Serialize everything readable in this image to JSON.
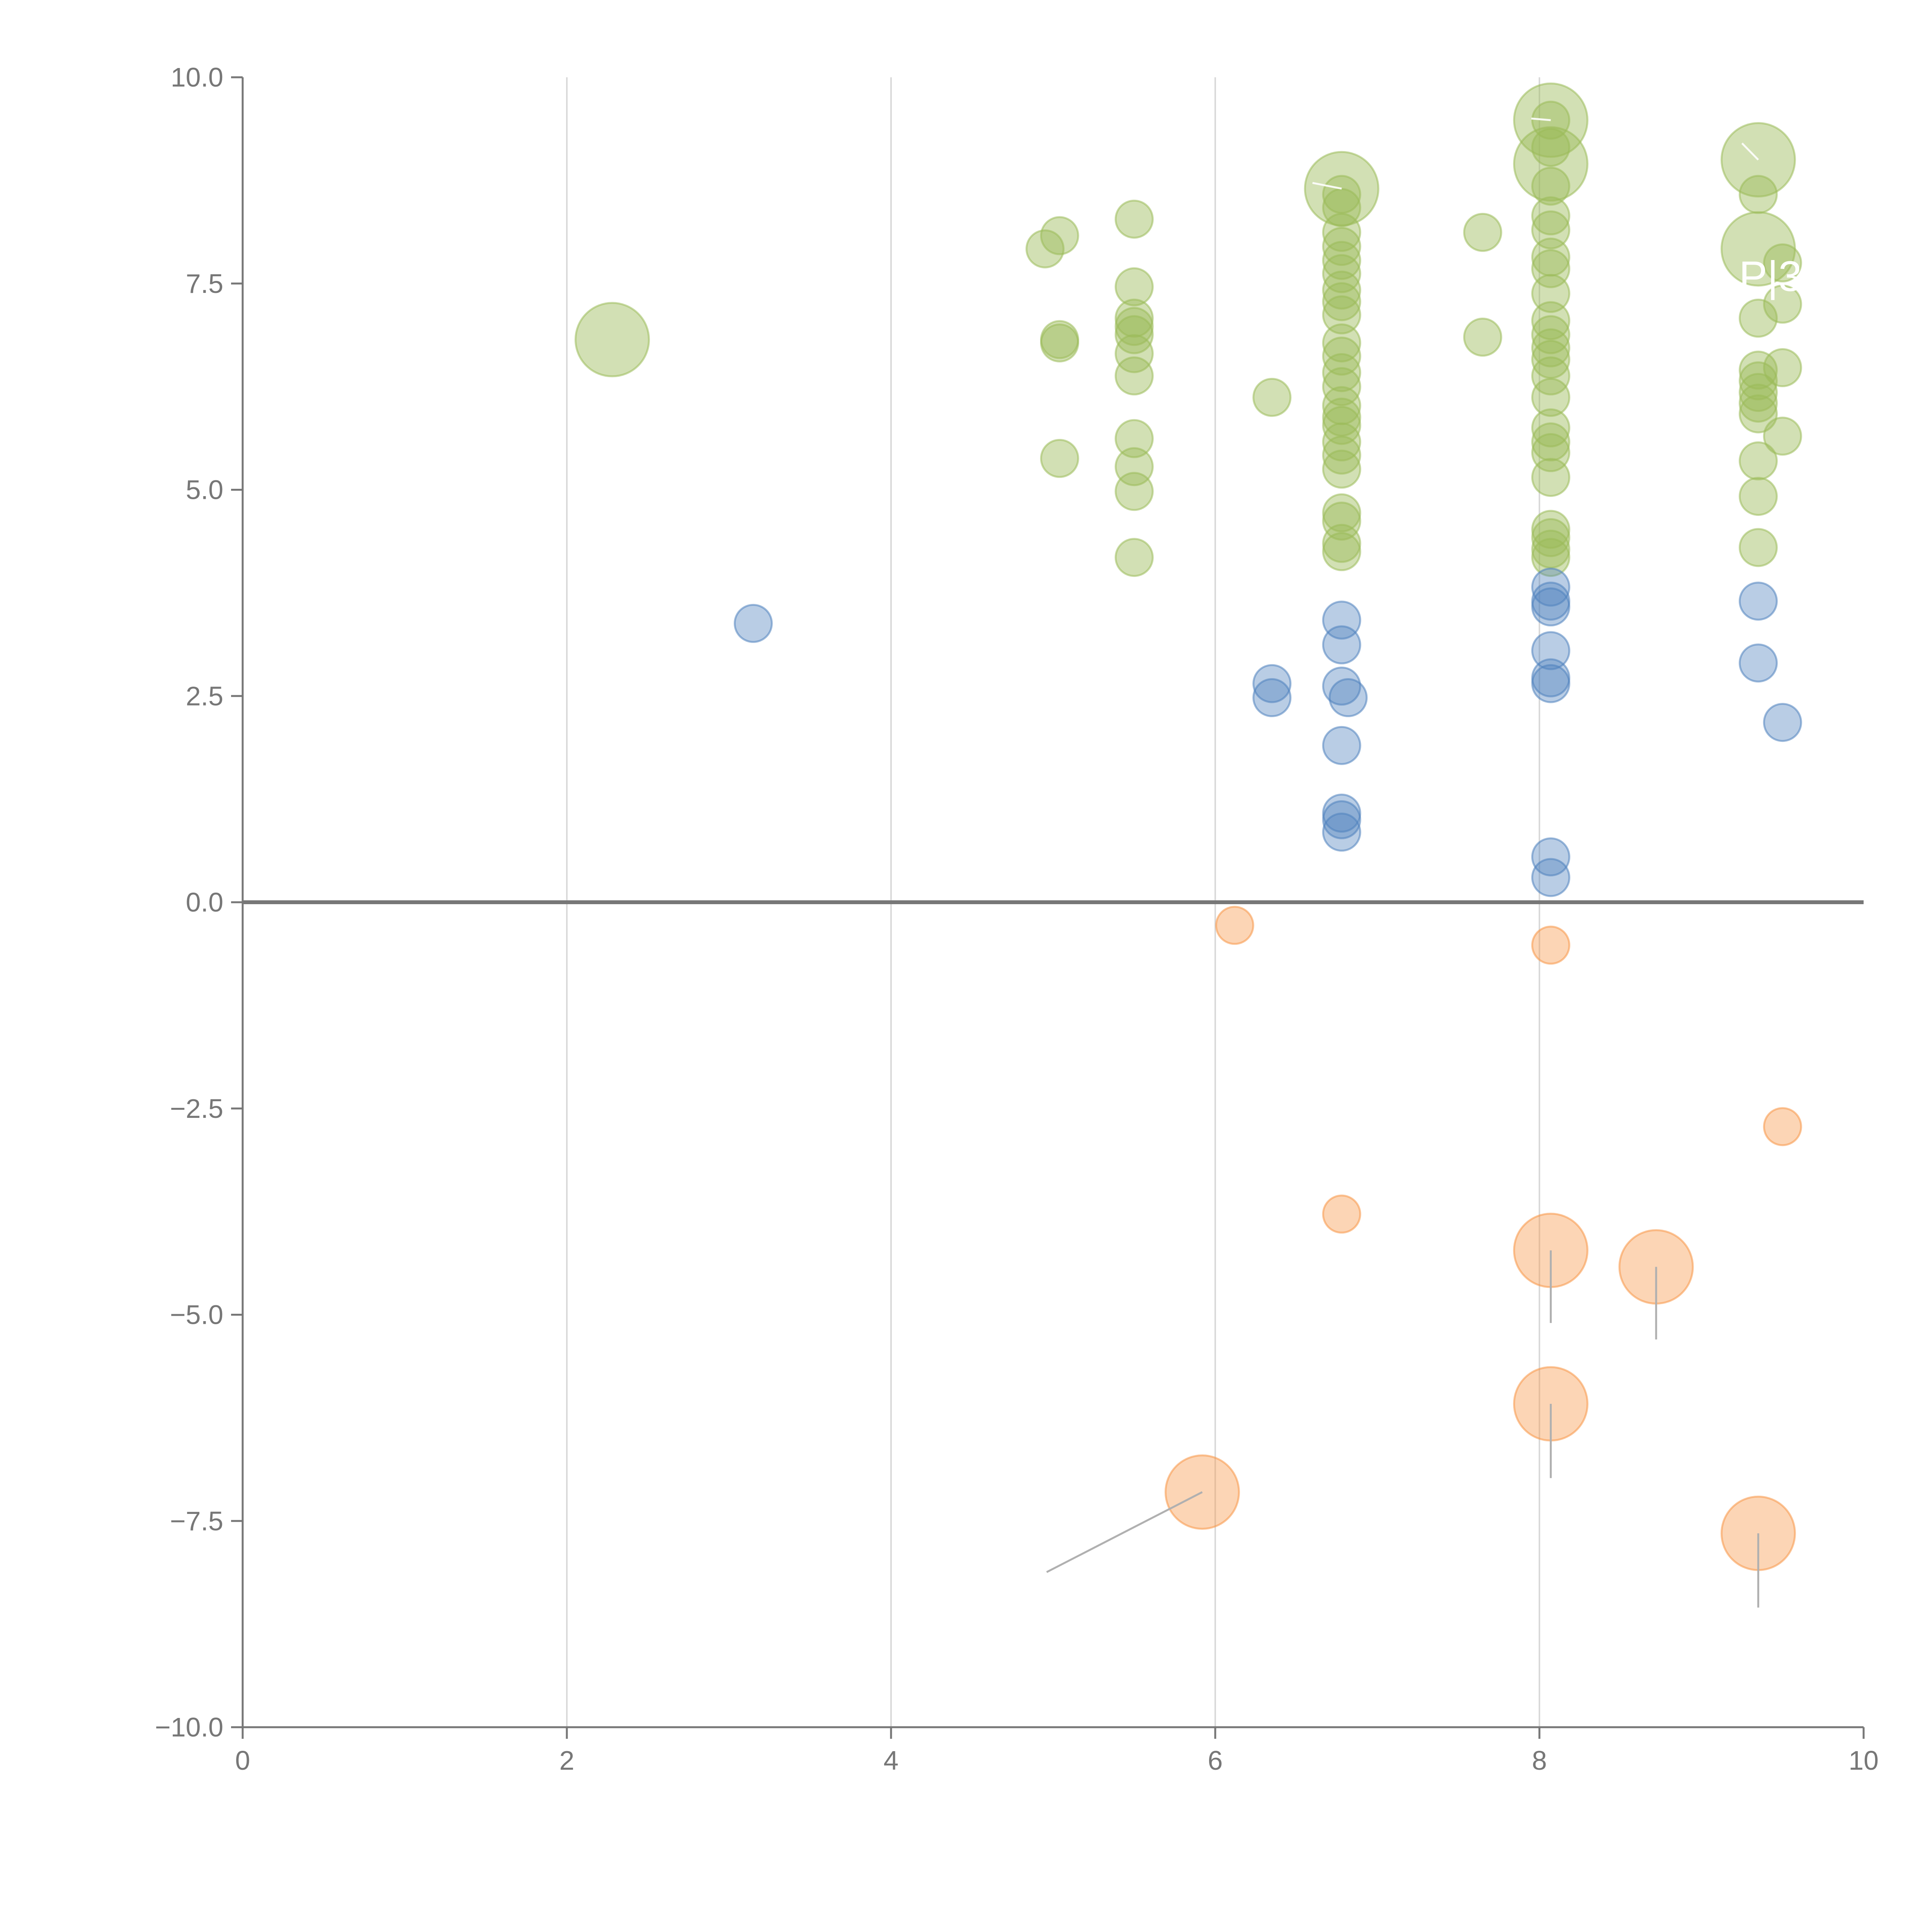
{
  "chart_data": {
    "type": "scatter",
    "title": "",
    "xlabel": "",
    "ylabel": "",
    "xlim": [
      0,
      10
    ],
    "ylim": [
      -10,
      10
    ],
    "x_ticks": [
      "0",
      "2",
      "4",
      "6",
      "8",
      "10"
    ],
    "y_ticks": [
      "10.0",
      "7.5",
      "5.0",
      "2.5",
      "0.0",
      "−2.5",
      "−5.0",
      "−7.5",
      "−10.0"
    ],
    "grid": "vertical",
    "colors": {
      "green": "#9bbb59",
      "blue": "#4f81bd",
      "orange": "#f79646",
      "axis": "#777777"
    },
    "series": [
      {
        "name": "green",
        "color": "#9bbb59",
        "points": [
          {
            "x": 2.28,
            "y": 6.82,
            "s": 2
          },
          {
            "x": 4.95,
            "y": 7.92,
            "s": 1
          },
          {
            "x": 5.04,
            "y": 8.08,
            "s": 1
          },
          {
            "x": 5.04,
            "y": 6.82,
            "s": 1
          },
          {
            "x": 5.04,
            "y": 6.78,
            "s": 1
          },
          {
            "x": 5.04,
            "y": 5.38,
            "s": 1
          },
          {
            "x": 5.5,
            "y": 8.28,
            "s": 1
          },
          {
            "x": 5.5,
            "y": 7.46,
            "s": 1
          },
          {
            "x": 5.5,
            "y": 7.08,
            "s": 1
          },
          {
            "x": 5.5,
            "y": 6.98,
            "s": 1
          },
          {
            "x": 5.5,
            "y": 6.88,
            "s": 1
          },
          {
            "x": 5.5,
            "y": 6.65,
            "s": 1
          },
          {
            "x": 5.5,
            "y": 6.38,
            "s": 1
          },
          {
            "x": 5.5,
            "y": 5.62,
            "s": 1
          },
          {
            "x": 5.5,
            "y": 5.28,
            "s": 1
          },
          {
            "x": 5.5,
            "y": 4.98,
            "s": 1
          },
          {
            "x": 5.5,
            "y": 4.18,
            "s": 1
          },
          {
            "x": 6.35,
            "y": 6.12,
            "s": 1
          },
          {
            "x": 6.78,
            "y": 8.65,
            "s": 2
          },
          {
            "x": 6.78,
            "y": 8.58,
            "s": 1
          },
          {
            "x": 6.78,
            "y": 8.42,
            "s": 1
          },
          {
            "x": 6.78,
            "y": 8.12,
            "s": 1
          },
          {
            "x": 6.78,
            "y": 7.95,
            "s": 1
          },
          {
            "x": 6.78,
            "y": 7.78,
            "s": 1
          },
          {
            "x": 6.78,
            "y": 7.62,
            "s": 1
          },
          {
            "x": 6.78,
            "y": 7.42,
            "s": 1
          },
          {
            "x": 6.78,
            "y": 7.28,
            "s": 1
          },
          {
            "x": 6.78,
            "y": 7.12,
            "s": 1
          },
          {
            "x": 6.78,
            "y": 6.78,
            "s": 1
          },
          {
            "x": 6.78,
            "y": 6.62,
            "s": 1
          },
          {
            "x": 6.78,
            "y": 6.42,
            "s": 1
          },
          {
            "x": 6.78,
            "y": 6.25,
            "s": 1
          },
          {
            "x": 6.78,
            "y": 6.02,
            "s": 1
          },
          {
            "x": 6.78,
            "y": 5.88,
            "s": 1
          },
          {
            "x": 6.78,
            "y": 5.78,
            "s": 1
          },
          {
            "x": 6.78,
            "y": 5.58,
            "s": 1
          },
          {
            "x": 6.78,
            "y": 5.42,
            "s": 1
          },
          {
            "x": 6.78,
            "y": 5.25,
            "s": 1
          },
          {
            "x": 6.78,
            "y": 4.72,
            "s": 1
          },
          {
            "x": 6.78,
            "y": 4.62,
            "s": 1
          },
          {
            "x": 6.78,
            "y": 4.35,
            "s": 1
          },
          {
            "x": 6.78,
            "y": 4.25,
            "s": 1
          },
          {
            "x": 7.65,
            "y": 8.12,
            "s": 1
          },
          {
            "x": 7.65,
            "y": 6.85,
            "s": 1
          },
          {
            "x": 8.07,
            "y": 9.48,
            "s": 2
          },
          {
            "x": 8.07,
            "y": 8.95,
            "s": 2
          },
          {
            "x": 8.07,
            "y": 9.48,
            "s": 1
          },
          {
            "x": 8.07,
            "y": 9.15,
            "s": 1
          },
          {
            "x": 8.07,
            "y": 8.68,
            "s": 1
          },
          {
            "x": 8.07,
            "y": 8.32,
            "s": 1
          },
          {
            "x": 8.07,
            "y": 8.15,
            "s": 1
          },
          {
            "x": 8.07,
            "y": 7.82,
            "s": 1
          },
          {
            "x": 8.07,
            "y": 7.68,
            "s": 1
          },
          {
            "x": 8.07,
            "y": 7.38,
            "s": 1
          },
          {
            "x": 8.07,
            "y": 7.05,
            "s": 1
          },
          {
            "x": 8.07,
            "y": 6.88,
            "s": 1
          },
          {
            "x": 8.07,
            "y": 6.72,
            "s": 1
          },
          {
            "x": 8.07,
            "y": 6.58,
            "s": 1
          },
          {
            "x": 8.07,
            "y": 6.38,
            "s": 1
          },
          {
            "x": 8.07,
            "y": 6.12,
            "s": 1
          },
          {
            "x": 8.07,
            "y": 5.75,
            "s": 1
          },
          {
            "x": 8.07,
            "y": 5.58,
            "s": 1
          },
          {
            "x": 8.07,
            "y": 5.45,
            "s": 1
          },
          {
            "x": 8.07,
            "y": 5.15,
            "s": 1
          },
          {
            "x": 8.07,
            "y": 4.52,
            "s": 1
          },
          {
            "x": 8.07,
            "y": 4.42,
            "s": 1
          },
          {
            "x": 8.07,
            "y": 4.28,
            "s": 1
          },
          {
            "x": 8.07,
            "y": 4.18,
            "s": 1
          },
          {
            "x": 9.35,
            "y": 9.0,
            "s": 2
          },
          {
            "x": 9.35,
            "y": 7.92,
            "s": 2
          },
          {
            "x": 9.35,
            "y": 8.58,
            "s": 1
          },
          {
            "x": 9.35,
            "y": 7.08,
            "s": 1
          },
          {
            "x": 9.35,
            "y": 6.45,
            "s": 1
          },
          {
            "x": 9.35,
            "y": 6.32,
            "s": 1
          },
          {
            "x": 9.35,
            "y": 6.18,
            "s": 1
          },
          {
            "x": 9.35,
            "y": 6.05,
            "s": 1
          },
          {
            "x": 9.35,
            "y": 5.92,
            "s": 1
          },
          {
            "x": 9.35,
            "y": 5.35,
            "s": 1
          },
          {
            "x": 9.35,
            "y": 4.92,
            "s": 1
          },
          {
            "x": 9.35,
            "y": 4.3,
            "s": 1
          },
          {
            "x": 9.5,
            "y": 7.75,
            "s": 1
          },
          {
            "x": 9.5,
            "y": 7.25,
            "s": 1
          },
          {
            "x": 9.5,
            "y": 6.48,
            "s": 1
          },
          {
            "x": 9.5,
            "y": 5.65,
            "s": 1
          }
        ]
      },
      {
        "name": "blue",
        "color": "#4f81bd",
        "points": [
          {
            "x": 3.15,
            "y": 3.38,
            "s": 1
          },
          {
            "x": 6.35,
            "y": 2.65,
            "s": 1
          },
          {
            "x": 6.35,
            "y": 2.48,
            "s": 1
          },
          {
            "x": 6.78,
            "y": 3.42,
            "s": 1
          },
          {
            "x": 6.78,
            "y": 3.12,
            "s": 1
          },
          {
            "x": 6.78,
            "y": 2.62,
            "s": 1
          },
          {
            "x": 6.82,
            "y": 2.48,
            "s": 1
          },
          {
            "x": 6.78,
            "y": 1.9,
            "s": 1
          },
          {
            "x": 6.78,
            "y": 1.08,
            "s": 1
          },
          {
            "x": 6.78,
            "y": 1.0,
            "s": 1
          },
          {
            "x": 6.78,
            "y": 0.85,
            "s": 1
          },
          {
            "x": 8.07,
            "y": 3.82,
            "s": 1
          },
          {
            "x": 8.07,
            "y": 3.65,
            "s": 1
          },
          {
            "x": 8.07,
            "y": 3.58,
            "s": 1
          },
          {
            "x": 8.07,
            "y": 3.05,
            "s": 1
          },
          {
            "x": 8.07,
            "y": 2.72,
            "s": 1
          },
          {
            "x": 8.07,
            "y": 2.65,
            "s": 1
          },
          {
            "x": 8.07,
            "y": 0.55,
            "s": 1
          },
          {
            "x": 8.07,
            "y": 0.3,
            "s": 1
          },
          {
            "x": 9.35,
            "y": 3.65,
            "s": 1
          },
          {
            "x": 9.35,
            "y": 2.9,
            "s": 1
          },
          {
            "x": 9.5,
            "y": 2.18,
            "s": 1
          }
        ]
      },
      {
        "name": "orange",
        "color": "#f79646",
        "points": [
          {
            "x": 6.12,
            "y": -0.28,
            "s": 1
          },
          {
            "x": 8.07,
            "y": -0.52,
            "s": 1
          },
          {
            "x": 9.5,
            "y": -2.72,
            "s": 1
          },
          {
            "x": 6.78,
            "y": -3.78,
            "s": 1
          },
          {
            "x": 8.07,
            "y": -4.22,
            "s": 2
          },
          {
            "x": 8.72,
            "y": -4.42,
            "s": 2
          },
          {
            "x": 8.07,
            "y": -6.08,
            "s": 2
          },
          {
            "x": 5.92,
            "y": -7.15,
            "s": 2
          },
          {
            "x": 9.35,
            "y": -7.65,
            "s": 2
          }
        ]
      }
    ],
    "annotations": [
      {
        "text": "P|3",
        "x": 9.35,
        "y": 7.55
      }
    ],
    "leaders": [
      {
        "x1": 8.07,
        "y1": -4.22,
        "x2": 8.07,
        "y2": -5.1,
        "style": "gray"
      },
      {
        "x1": 8.72,
        "y1": -4.42,
        "x2": 8.72,
        "y2": -5.3,
        "style": "gray"
      },
      {
        "x1": 8.07,
        "y1": -6.08,
        "x2": 8.07,
        "y2": -6.98,
        "style": "gray"
      },
      {
        "x1": 5.92,
        "y1": -7.15,
        "x2": 4.96,
        "y2": -8.12,
        "style": "gray"
      },
      {
        "x1": 9.35,
        "y1": -7.65,
        "x2": 9.35,
        "y2": -8.55,
        "style": "gray"
      },
      {
        "x1": 6.78,
        "y1": 8.65,
        "x2": 6.6,
        "y2": 8.72,
        "style": "white"
      },
      {
        "x1": 8.07,
        "y1": 9.48,
        "x2": 7.95,
        "y2": 9.5,
        "style": "white"
      },
      {
        "x1": 9.35,
        "y1": 9.0,
        "x2": 9.25,
        "y2": 9.2,
        "style": "white"
      }
    ]
  }
}
